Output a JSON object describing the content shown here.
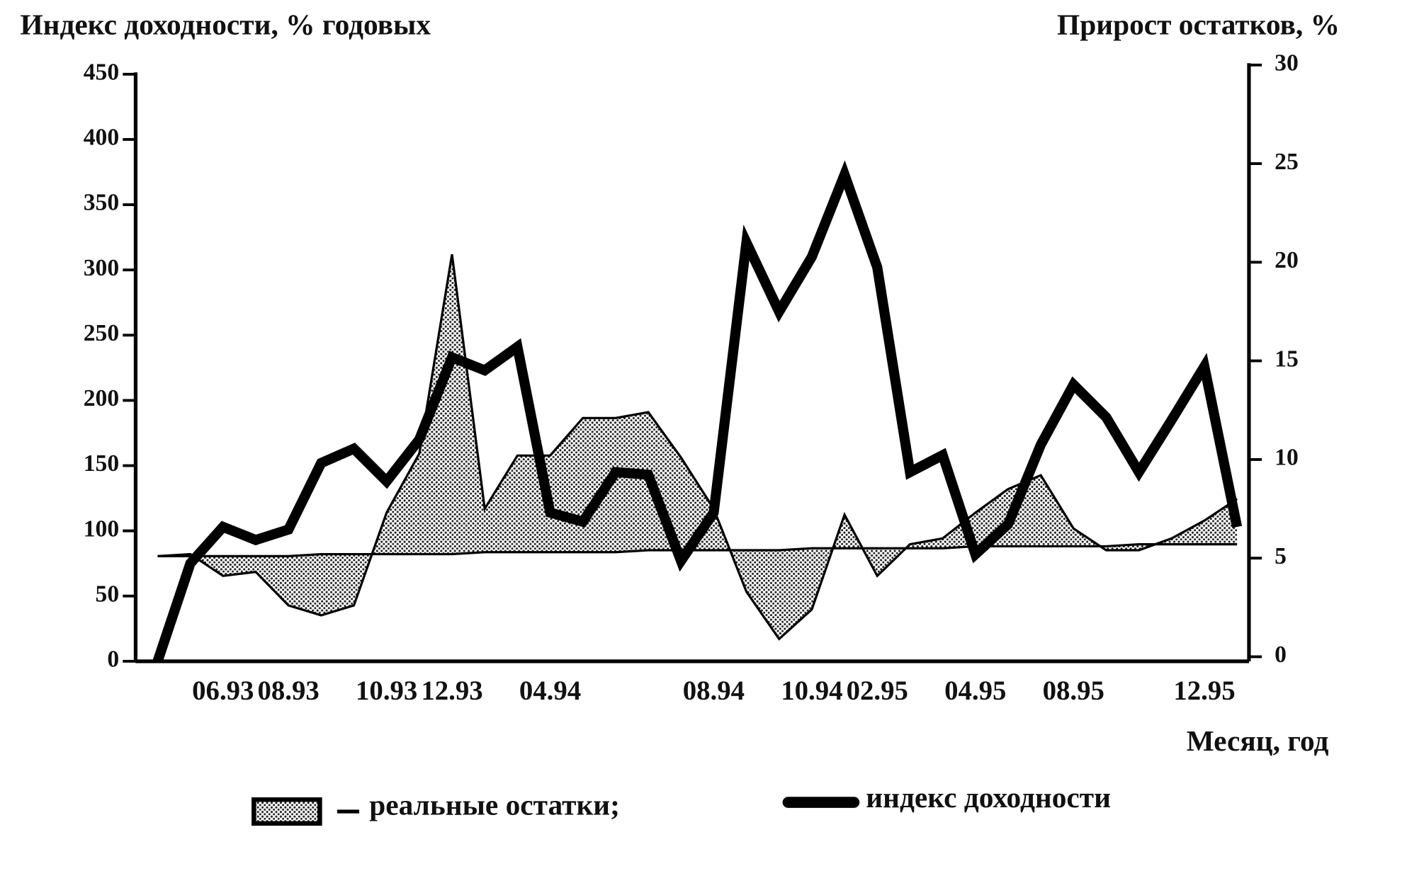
{
  "chart_data": {
    "type": "line",
    "title_left": "Индекс доходности,  %  годовых",
    "title_right": "Прирост остатков,  %",
    "xlabel": "Месяц,  год",
    "categories": [
      null,
      null,
      "06.93",
      null,
      "08.93",
      null,
      null,
      "10.93",
      null,
      "12.93",
      null,
      null,
      "04.94",
      null,
      null,
      null,
      null,
      "08.94",
      null,
      null,
      "10.94",
      null,
      "02.95",
      null,
      null,
      "04.95",
      null,
      null,
      "08.95",
      null,
      null,
      null,
      "12.95",
      null
    ],
    "ylim": [
      0,
      450
    ],
    "yticks": [
      0,
      50,
      100,
      150,
      200,
      250,
      300,
      350,
      400,
      450
    ],
    "y2lim": [
      0,
      30
    ],
    "y2ticks": [
      0,
      5,
      10,
      15,
      20,
      25,
      30
    ],
    "fill_between": [
      0,
      2
    ],
    "series": [
      {
        "name": "реальные остатки;",
        "type": "area",
        "axis": "y2",
        "color": "#000",
        "values": [
          5.1,
          5.2,
          4.1,
          4.3,
          2.6,
          2.1,
          2.6,
          7.3,
          10.3,
          20.4,
          7.5,
          10.2,
          10.2,
          12.1,
          12.1,
          12.4,
          10.1,
          7.5,
          3.3,
          0.9,
          2.4,
          7.2,
          4.1,
          5.7,
          6.0,
          7.3,
          8.5,
          9.2,
          6.5,
          5.4,
          5.4,
          6.0,
          6.9,
          8.0
        ]
      },
      {
        "name": "индекс  доходности",
        "type": "line",
        "color": "#000",
        "values": [
          0,
          75,
          103,
          93,
          101,
          152,
          163,
          138,
          170,
          233,
          223,
          241,
          114,
          107,
          145,
          143,
          77,
          114,
          321,
          268,
          310,
          373,
          302,
          145,
          158,
          82,
          105,
          166,
          212,
          187,
          145,
          185,
          226,
          103
        ]
      },
      {
        "type": "line",
        "axis": "y2",
        "color": "#000",
        "values": [
          5.1,
          5.1,
          5.1,
          5.1,
          5.1,
          5.2,
          5.2,
          5.2,
          5.2,
          5.2,
          5.3,
          5.3,
          5.3,
          5.3,
          5.3,
          5.4,
          5.4,
          5.4,
          5.4,
          5.4,
          5.5,
          5.5,
          5.5,
          5.5,
          5.5,
          5.6,
          5.6,
          5.6,
          5.6,
          5.6,
          5.7,
          5.7,
          5.7,
          5.7
        ]
      }
    ]
  }
}
